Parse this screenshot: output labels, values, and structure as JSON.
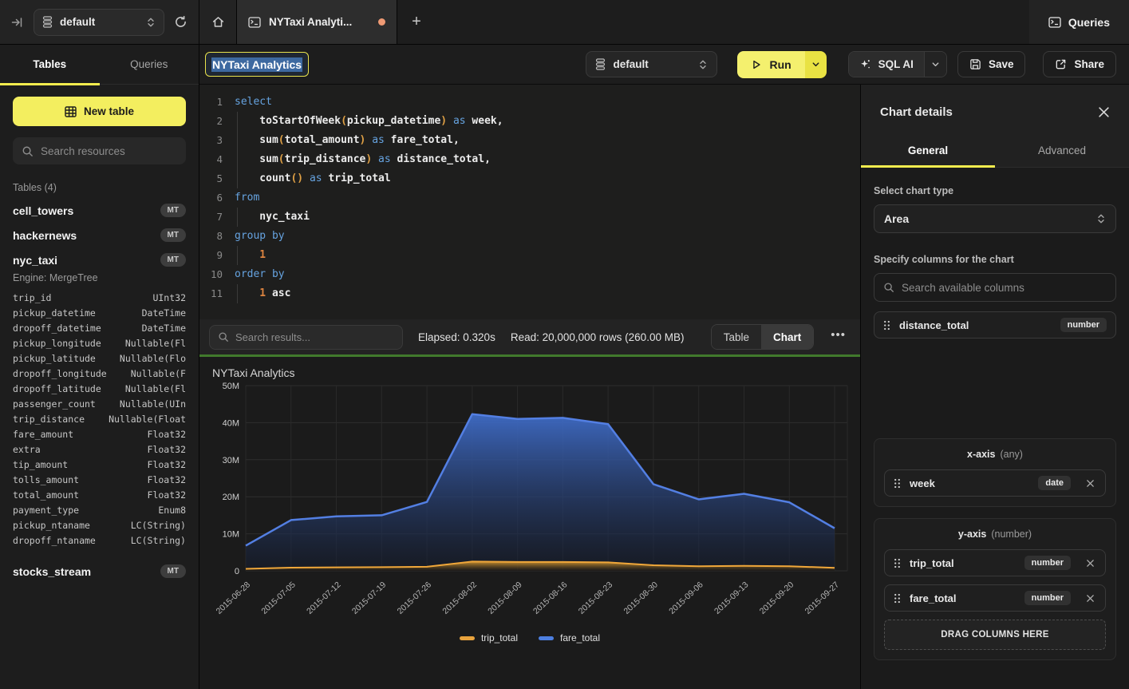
{
  "topbar": {
    "database": {
      "value": "default"
    },
    "tab_title": "NYTaxi Analyti...",
    "plus_label": "+",
    "queries_label": "Queries"
  },
  "sidebar": {
    "tabs": {
      "tables": "Tables",
      "queries": "Queries"
    },
    "new_table_label": "New table",
    "search_placeholder": "Search resources",
    "section_label": "Tables (4)",
    "tables": [
      {
        "name": "cell_towers",
        "badge": "MT"
      },
      {
        "name": "hackernews",
        "badge": "MT"
      },
      {
        "name": "nyc_taxi",
        "badge": "MT",
        "engine": "Engine: MergeTree",
        "columns": [
          {
            "name": "trip_id",
            "type": "UInt32"
          },
          {
            "name": "pickup_datetime",
            "type": "DateTime"
          },
          {
            "name": "dropoff_datetime",
            "type": "DateTime"
          },
          {
            "name": "pickup_longitude",
            "type": "Nullable(Fl"
          },
          {
            "name": "pickup_latitude",
            "type": "Nullable(Flo"
          },
          {
            "name": "dropoff_longitude",
            "type": "Nullable(F"
          },
          {
            "name": "dropoff_latitude",
            "type": "Nullable(Fl"
          },
          {
            "name": "passenger_count",
            "type": "Nullable(UIn"
          },
          {
            "name": "trip_distance",
            "type": "Nullable(Float"
          },
          {
            "name": "fare_amount",
            "type": "Float32"
          },
          {
            "name": "extra",
            "type": "Float32"
          },
          {
            "name": "tip_amount",
            "type": "Float32"
          },
          {
            "name": "tolls_amount",
            "type": "Float32"
          },
          {
            "name": "total_amount",
            "type": "Float32"
          },
          {
            "name": "payment_type",
            "type": "Enum8"
          },
          {
            "name": "pickup_ntaname",
            "type": "LC(String)"
          },
          {
            "name": "dropoff_ntaname",
            "type": "LC(String)"
          }
        ]
      },
      {
        "name": "stocks_stream",
        "badge": "MT"
      }
    ]
  },
  "toolbar": {
    "title_value": "NYTaxi Analytics",
    "database_value": "default",
    "run_label": "Run",
    "sql_ai_label": "SQL AI",
    "save_label": "Save",
    "share_label": "Share"
  },
  "editor": {
    "lines": [
      {
        "n": "1",
        "t": [
          [
            "select",
            "kw"
          ]
        ]
      },
      {
        "n": "2",
        "t": [
          [
            "    toStartOfWeek",
            "id"
          ],
          [
            "(",
            "pr"
          ],
          [
            "pickup_datetime",
            "id"
          ],
          [
            ")",
            "pr"
          ],
          [
            " ",
            "id"
          ],
          [
            "as",
            "kw"
          ],
          [
            " week,",
            "id"
          ]
        ]
      },
      {
        "n": "3",
        "t": [
          [
            "    sum",
            "id"
          ],
          [
            "(",
            "pr"
          ],
          [
            "total_amount",
            "id"
          ],
          [
            ")",
            "pr"
          ],
          [
            " ",
            "id"
          ],
          [
            "as",
            "kw"
          ],
          [
            " fare_total,",
            "id"
          ]
        ]
      },
      {
        "n": "4",
        "t": [
          [
            "    sum",
            "id"
          ],
          [
            "(",
            "pr"
          ],
          [
            "trip_distance",
            "id"
          ],
          [
            ")",
            "pr"
          ],
          [
            " ",
            "id"
          ],
          [
            "as",
            "kw"
          ],
          [
            " distance_total,",
            "id"
          ]
        ]
      },
      {
        "n": "5",
        "t": [
          [
            "    count",
            "id"
          ],
          [
            "(",
            "pr"
          ],
          [
            ")",
            "pr"
          ],
          [
            " ",
            "id"
          ],
          [
            "as",
            "kw"
          ],
          [
            " trip_total",
            "id"
          ]
        ]
      },
      {
        "n": "6",
        "t": [
          [
            "from",
            "kw"
          ]
        ]
      },
      {
        "n": "7",
        "t": [
          [
            "    nyc_taxi",
            "id"
          ]
        ]
      },
      {
        "n": "8",
        "t": [
          [
            "group by",
            "kw"
          ]
        ]
      },
      {
        "n": "9",
        "t": [
          [
            "    1",
            "num"
          ]
        ]
      },
      {
        "n": "10",
        "t": [
          [
            "order by",
            "kw"
          ]
        ]
      },
      {
        "n": "11",
        "t": [
          [
            "    1",
            "num"
          ],
          [
            " asc",
            "id"
          ]
        ]
      }
    ]
  },
  "results_bar": {
    "search_placeholder": "Search results...",
    "elapsed": "Elapsed: 0.320s",
    "read": "Read: 20,000,000 rows (260.00 MB)",
    "views": [
      {
        "label": "Table",
        "active": false
      },
      {
        "label": "Chart",
        "active": true
      }
    ],
    "more_label": "•••"
  },
  "chart_panel": {
    "title": "NYTaxi Analytics"
  },
  "chart_data": {
    "type": "area",
    "title": "NYTaxi Analytics",
    "x": [
      "2015-06-28",
      "2015-07-05",
      "2015-07-12",
      "2015-07-19",
      "2015-07-26",
      "2015-08-02",
      "2015-08-09",
      "2015-08-16",
      "2015-08-23",
      "2015-08-30",
      "2015-09-06",
      "2015-09-13",
      "2015-09-20",
      "2015-09-27"
    ],
    "series": [
      {
        "name": "trip_total",
        "color": "#e8a33d",
        "values": [
          550000,
          850000,
          950000,
          1000000,
          1100000,
          2500000,
          2400000,
          2400000,
          2300000,
          1500000,
          1250000,
          1350000,
          1250000,
          800000
        ]
      },
      {
        "name": "fare_total",
        "color": "#4d7fe0",
        "values": [
          6800000,
          13700000,
          14700000,
          15000000,
          18600000,
          42300000,
          41000000,
          41300000,
          39600000,
          23400000,
          19300000,
          20800000,
          18500000,
          11500000
        ]
      }
    ],
    "ylim": [
      0,
      50000000
    ],
    "ytick_labels": [
      "0",
      "10M",
      "20M",
      "30M",
      "40M",
      "50M"
    ],
    "grid": true,
    "legend_position": "bottom"
  },
  "right_panel": {
    "title": "Chart details",
    "tabs": [
      {
        "label": "General",
        "active": true
      },
      {
        "label": "Advanced",
        "active": false
      }
    ],
    "chart_type": {
      "label": "Select chart type",
      "value": "Area"
    },
    "columns_section": {
      "label": "Specify columns for the chart",
      "search_placeholder": "Search available columns",
      "available": [
        {
          "name": "distance_total",
          "type": "number"
        }
      ]
    },
    "x_axis": {
      "title": "x-axis",
      "hint": "(any)",
      "chips": [
        {
          "name": "week",
          "type": "date"
        }
      ]
    },
    "y_axis": {
      "title": "y-axis",
      "hint": "(number)",
      "chips": [
        {
          "name": "trip_total",
          "type": "number"
        },
        {
          "name": "fare_total",
          "type": "number"
        }
      ],
      "drop_label": "DRAG COLUMNS HERE"
    }
  }
}
